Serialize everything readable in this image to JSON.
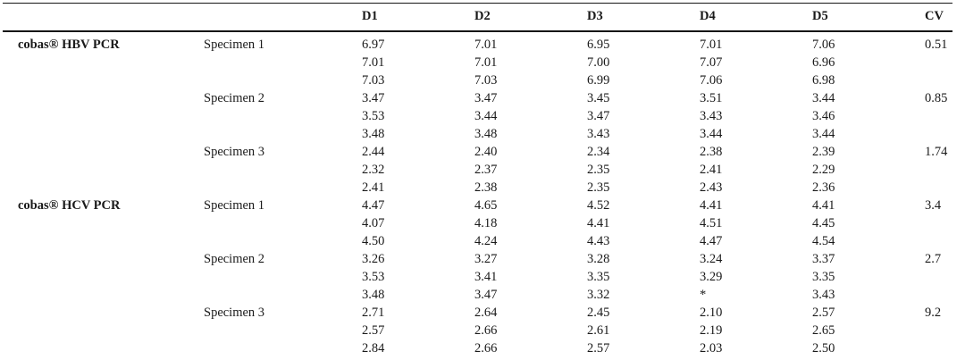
{
  "table": {
    "columns": [
      "",
      "",
      "D1",
      "D2",
      "D3",
      "D4",
      "D5",
      "CV"
    ],
    "groups": [
      {
        "assay": "cobas® HBV PCR",
        "specimens": [
          {
            "name": "Specimen 1",
            "cv": "0.51",
            "rows": [
              [
                "6.97",
                "7.01",
                "6.95",
                "7.01",
                "7.06"
              ],
              [
                "7.01",
                "7.01",
                "7.00",
                "7.07",
                "6.96"
              ],
              [
                "7.03",
                "7.03",
                "6.99",
                "7.06",
                "6.98"
              ]
            ]
          },
          {
            "name": "Specimen 2",
            "cv": "0.85",
            "rows": [
              [
                "3.47",
                "3.47",
                "3.45",
                "3.51",
                "3.44"
              ],
              [
                "3.53",
                "3.44",
                "3.47",
                "3.43",
                "3.46"
              ],
              [
                "3.48",
                "3.48",
                "3.43",
                "3.44",
                "3.44"
              ]
            ]
          },
          {
            "name": "Specimen 3",
            "cv": "1.74",
            "rows": [
              [
                "2.44",
                "2.40",
                "2.34",
                "2.38",
                "2.39"
              ],
              [
                "2.32",
                "2.37",
                "2.35",
                "2.41",
                "2.29"
              ],
              [
                "2.41",
                "2.38",
                "2.35",
                "2.43",
                "2.36"
              ]
            ]
          }
        ]
      },
      {
        "assay": "cobas® HCV PCR",
        "specimens": [
          {
            "name": "Specimen 1",
            "cv": "3.4",
            "rows": [
              [
                "4.47",
                "4.65",
                "4.52",
                "4.41",
                "4.41"
              ],
              [
                "4.07",
                "4.18",
                "4.41",
                "4.51",
                "4.45"
              ],
              [
                "4.50",
                "4.24",
                "4.43",
                "4.47",
                "4.54"
              ]
            ]
          },
          {
            "name": "Specimen 2",
            "cv": "2.7",
            "rows": [
              [
                "3.26",
                "3.27",
                "3.28",
                "3.24",
                "3.37"
              ],
              [
                "3.53",
                "3.41",
                "3.35",
                "3.29",
                "3.35"
              ],
              [
                "3.48",
                "3.47",
                "3.32",
                "*",
                "3.43"
              ]
            ]
          },
          {
            "name": "Specimen 3",
            "cv": "9.2",
            "rows": [
              [
                "2.71",
                "2.64",
                "2.45",
                "2.10",
                "2.57"
              ],
              [
                "2.57",
                "2.66",
                "2.61",
                "2.19",
                "2.65"
              ],
              [
                "2.84",
                "2.66",
                "2.57",
                "2.03",
                "2.50"
              ]
            ]
          }
        ]
      }
    ]
  },
  "colors": {
    "text": "#1a1a1a",
    "border": "#161616",
    "background": "#ffffff"
  }
}
